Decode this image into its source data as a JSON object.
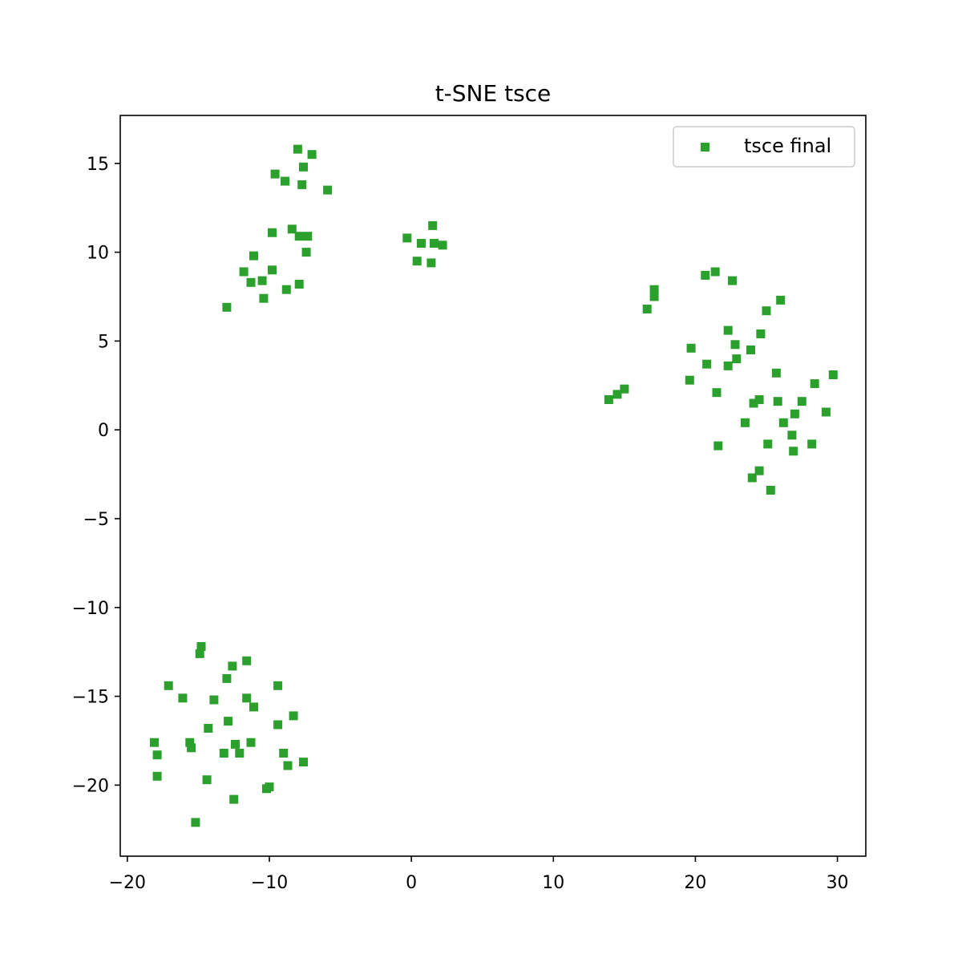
{
  "chart_data": {
    "type": "scatter",
    "title": "t-SNE tsce",
    "xlabel": "",
    "ylabel": "",
    "xlim": [
      -20.5,
      32.0
    ],
    "ylim": [
      -24.0,
      17.7
    ],
    "xticks": [
      -20,
      -10,
      0,
      10,
      20,
      30
    ],
    "xtick_labels": [
      "−20",
      "−10",
      "0",
      "10",
      "20",
      "30"
    ],
    "yticks": [
      15,
      10,
      5,
      0,
      -5,
      -10,
      -15,
      -20
    ],
    "ytick_labels": [
      "15",
      "10",
      "5",
      "0",
      "−5",
      "−10",
      "−15",
      "−20"
    ],
    "grid": false,
    "legend_position": "top-right",
    "colors": {
      "series": "#2ca02c",
      "axes": "#000000",
      "background": "#ffffff"
    },
    "series": [
      {
        "name": "tsce final",
        "marker": "square",
        "points": [
          [
            -8.0,
            15.8
          ],
          [
            -7.0,
            15.5
          ],
          [
            -7.6,
            14.8
          ],
          [
            -9.6,
            14.4
          ],
          [
            -8.9,
            14.0
          ],
          [
            -7.7,
            13.8
          ],
          [
            -5.9,
            13.5
          ],
          [
            -8.4,
            11.3
          ],
          [
            -9.8,
            11.1
          ],
          [
            -7.9,
            10.9
          ],
          [
            -7.3,
            10.9
          ],
          [
            -11.1,
            9.8
          ],
          [
            -7.4,
            10.0
          ],
          [
            -9.8,
            9.0
          ],
          [
            -11.8,
            8.9
          ],
          [
            -11.3,
            8.3
          ],
          [
            -10.5,
            8.4
          ],
          [
            -7.9,
            8.2
          ],
          [
            -8.8,
            7.9
          ],
          [
            -10.4,
            7.4
          ],
          [
            -13.0,
            6.9
          ],
          [
            -0.3,
            10.8
          ],
          [
            0.7,
            10.5
          ],
          [
            1.5,
            11.5
          ],
          [
            1.6,
            10.5
          ],
          [
            2.2,
            10.4
          ],
          [
            0.4,
            9.5
          ],
          [
            1.4,
            9.4
          ],
          [
            21.4,
            8.9
          ],
          [
            20.7,
            8.7
          ],
          [
            22.6,
            8.4
          ],
          [
            17.1,
            7.9
          ],
          [
            17.1,
            7.5
          ],
          [
            26.0,
            7.3
          ],
          [
            25.0,
            6.7
          ],
          [
            16.6,
            6.8
          ],
          [
            22.3,
            5.6
          ],
          [
            24.6,
            5.4
          ],
          [
            22.8,
            4.8
          ],
          [
            19.7,
            4.6
          ],
          [
            23.9,
            4.5
          ],
          [
            22.9,
            4.0
          ],
          [
            20.8,
            3.7
          ],
          [
            22.3,
            3.6
          ],
          [
            25.7,
            3.2
          ],
          [
            29.7,
            3.1
          ],
          [
            19.6,
            2.8
          ],
          [
            28.4,
            2.6
          ],
          [
            15.0,
            2.3
          ],
          [
            21.5,
            2.1
          ],
          [
            14.5,
            2.0
          ],
          [
            13.9,
            1.7
          ],
          [
            24.5,
            1.7
          ],
          [
            25.8,
            1.6
          ],
          [
            27.5,
            1.6
          ],
          [
            24.1,
            1.5
          ],
          [
            29.2,
            1.0
          ],
          [
            27.0,
            0.9
          ],
          [
            23.5,
            0.4
          ],
          [
            26.2,
            0.4
          ],
          [
            26.8,
            -0.3
          ],
          [
            21.6,
            -0.9
          ],
          [
            25.1,
            -0.8
          ],
          [
            28.2,
            -0.8
          ],
          [
            26.9,
            -1.2
          ],
          [
            24.5,
            -2.3
          ],
          [
            24.0,
            -2.7
          ],
          [
            25.3,
            -3.4
          ],
          [
            -14.8,
            -12.2
          ],
          [
            -14.9,
            -12.6
          ],
          [
            -11.6,
            -13.0
          ],
          [
            -12.6,
            -13.3
          ],
          [
            -13.0,
            -14.0
          ],
          [
            -17.1,
            -14.4
          ],
          [
            -9.4,
            -14.4
          ],
          [
            -16.1,
            -15.1
          ],
          [
            -13.9,
            -15.2
          ],
          [
            -11.6,
            -15.1
          ],
          [
            -11.1,
            -15.6
          ],
          [
            -8.3,
            -16.1
          ],
          [
            -12.9,
            -16.4
          ],
          [
            -9.4,
            -16.6
          ],
          [
            -14.3,
            -16.8
          ],
          [
            -18.1,
            -17.6
          ],
          [
            -15.6,
            -17.6
          ],
          [
            -12.4,
            -17.7
          ],
          [
            -11.3,
            -17.6
          ],
          [
            -15.5,
            -17.9
          ],
          [
            -17.9,
            -18.3
          ],
          [
            -13.2,
            -18.2
          ],
          [
            -12.1,
            -18.2
          ],
          [
            -9.0,
            -18.2
          ],
          [
            -7.6,
            -18.7
          ],
          [
            -8.7,
            -18.9
          ],
          [
            -17.9,
            -19.5
          ],
          [
            -14.4,
            -19.7
          ],
          [
            -10.0,
            -20.1
          ],
          [
            -10.2,
            -20.2
          ],
          [
            -12.5,
            -20.8
          ],
          [
            -15.2,
            -22.1
          ]
        ]
      }
    ]
  }
}
